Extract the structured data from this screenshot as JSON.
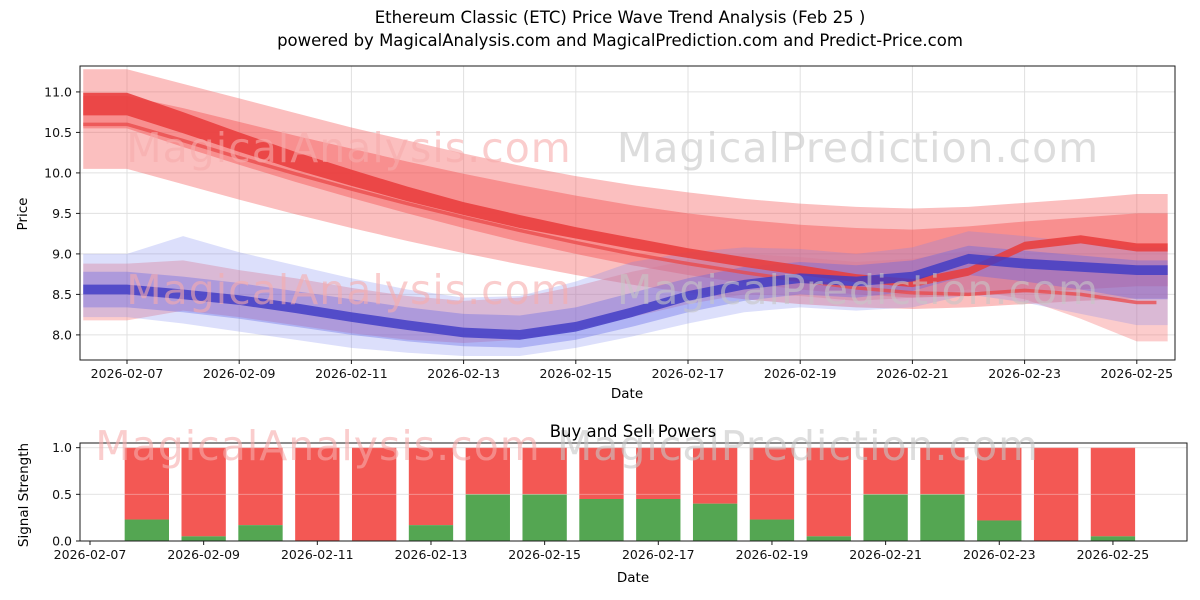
{
  "title": "Ethereum Classic (ETC) Price Wave Trend Analysis (Feb 25 )",
  "subtitle": "powered by MagicalAnalysis.com and MagicalPrediction.com and Predict-Price.com",
  "watermarks": {
    "left_text": "MagicalAnalysis.com",
    "right_text": "MagicalPrediction.com",
    "left_color": "rgba(246,172,172,0.60)",
    "right_color": "rgba(198,198,198,0.60)"
  },
  "colors": {
    "sell_band": "rgba(246,94,94,0.40)",
    "sell_band_inner": "rgba(244,84,84,0.45)",
    "sell_band_low": "rgba(247,120,120,0.38)",
    "sell_line": "rgba(232,62,62,0.88)",
    "buy_band": "rgba(116,126,240,0.25)",
    "buy_band_inner": "rgba(92,96,232,0.35)",
    "buy_line": "rgba(64,58,196,0.82)",
    "bar_sell_red": "#f24a45",
    "bar_buy_green": "#4ba149",
    "grid": "#e0e0e0",
    "spine": "#1a1a1a"
  },
  "chart_data": [
    {
      "type": "area",
      "name": "price-wave-chart",
      "xlabel": "Date",
      "ylabel": "Price",
      "x": [
        "2026-02-07",
        "2026-02-08",
        "2026-02-09",
        "2026-02-10",
        "2026-02-11",
        "2026-02-12",
        "2026-02-13",
        "2026-02-14",
        "2026-02-15",
        "2026-02-16",
        "2026-02-17",
        "2026-02-18",
        "2026-02-19",
        "2026-02-20",
        "2026-02-21",
        "2026-02-22",
        "2026-02-23",
        "2026-02-24",
        "2026-02-25"
      ],
      "xtick_labels": [
        "2026-02-07",
        "2026-02-09",
        "2026-02-11",
        "2026-02-13",
        "2026-02-15",
        "2026-02-17",
        "2026-02-19",
        "2026-02-21",
        "2026-02-23",
        "2026-02-25"
      ],
      "ytick_labels": [
        "8.0",
        "8.5",
        "9.0",
        "9.5",
        "10.0",
        "10.5",
        "11.0"
      ],
      "yticks": [
        8.0,
        8.5,
        9.0,
        9.5,
        10.0,
        10.5,
        11.0
      ],
      "ylim": [
        7.69,
        11.32
      ],
      "grid": true,
      "legend": "none",
      "series": [
        {
          "name": "sell-wave-outer-band",
          "kind": "band",
          "color": "rgba(246,94,94,0.40)",
          "upper": [
            11.28,
            11.1,
            10.92,
            10.74,
            10.56,
            10.4,
            10.24,
            10.09,
            9.96,
            9.85,
            9.76,
            9.68,
            9.62,
            9.58,
            9.56,
            9.58,
            9.63,
            9.68,
            9.74
          ],
          "lower": [
            10.05,
            9.86,
            9.67,
            9.49,
            9.32,
            9.16,
            9.01,
            8.87,
            8.74,
            8.62,
            8.52,
            8.44,
            8.38,
            8.34,
            8.32,
            8.34,
            8.38,
            8.42,
            8.45
          ]
        },
        {
          "name": "sell-wave-inner-band",
          "kind": "band",
          "color": "rgba(244,84,84,0.45)",
          "upper": [
            10.95,
            10.8,
            10.63,
            10.46,
            10.3,
            10.14,
            9.99,
            9.85,
            9.72,
            9.6,
            9.5,
            9.42,
            9.36,
            9.32,
            9.3,
            9.34,
            9.4,
            9.45,
            9.5
          ],
          "lower": [
            10.55,
            10.32,
            10.1,
            9.89,
            9.69,
            9.5,
            9.32,
            9.15,
            9.0,
            8.86,
            8.74,
            8.64,
            8.56,
            8.5,
            8.46,
            8.48,
            8.52,
            8.56,
            8.6
          ]
        },
        {
          "name": "sell-wave-low-band",
          "kind": "band",
          "color": "rgba(247,120,120,0.38)",
          "upper": [
            8.88,
            8.92,
            8.8,
            8.7,
            8.58,
            8.48,
            8.42,
            8.46,
            8.6,
            8.78,
            8.92,
            9.0,
            8.96,
            8.9,
            8.94,
            9.04,
            8.96,
            8.86,
            8.76
          ],
          "lower": [
            8.18,
            8.3,
            8.22,
            8.12,
            8.02,
            7.94,
            7.9,
            7.94,
            8.06,
            8.22,
            8.38,
            8.5,
            8.48,
            8.42,
            8.46,
            8.56,
            8.44,
            8.2,
            7.92
          ]
        },
        {
          "name": "buy-wave-outer-band",
          "kind": "band",
          "color": "rgba(116,126,240,0.25)",
          "upper": [
            9.0,
            9.22,
            9.02,
            8.86,
            8.7,
            8.56,
            8.46,
            8.48,
            8.66,
            8.9,
            9.02,
            9.08,
            9.06,
            9.0,
            9.08,
            9.28,
            9.22,
            9.14,
            9.08
          ],
          "lower": [
            8.22,
            8.14,
            8.04,
            7.94,
            7.84,
            7.78,
            7.74,
            7.74,
            7.84,
            7.98,
            8.14,
            8.28,
            8.34,
            8.3,
            8.34,
            8.5,
            8.4,
            8.26,
            8.12
          ]
        },
        {
          "name": "buy-wave-inner-band",
          "kind": "band",
          "color": "rgba(92,96,232,0.35)",
          "upper": [
            8.78,
            8.72,
            8.64,
            8.54,
            8.44,
            8.34,
            8.26,
            8.24,
            8.34,
            8.52,
            8.7,
            8.84,
            8.9,
            8.86,
            8.92,
            9.1,
            9.04,
            8.98,
            8.92
          ],
          "lower": [
            8.34,
            8.28,
            8.2,
            8.1,
            8.0,
            7.92,
            7.86,
            7.84,
            7.94,
            8.1,
            8.28,
            8.42,
            8.5,
            8.46,
            8.54,
            8.74,
            8.66,
            8.56,
            8.44
          ]
        },
        {
          "name": "sell-secondary-trend-line",
          "kind": "line",
          "color": "rgba(234,72,72,0.75)",
          "width": 3.5,
          "values": [
            10.6,
            10.4,
            10.19,
            9.99,
            9.8,
            9.62,
            9.45,
            9.29,
            9.14,
            9.0,
            8.88,
            8.77,
            8.67,
            8.58,
            8.52,
            8.5,
            8.55,
            8.5,
            8.4
          ]
        },
        {
          "name": "sell-trend-line",
          "kind": "band",
          "color": "rgba(232,62,62,0.88)",
          "upper": [
            10.99,
            10.75,
            10.5,
            10.26,
            10.04,
            9.83,
            9.64,
            9.48,
            9.33,
            9.2,
            9.07,
            8.96,
            8.86,
            8.75,
            8.69,
            8.83,
            9.15,
            9.23,
            9.13
          ],
          "lower": [
            10.71,
            10.49,
            10.26,
            10.04,
            9.84,
            9.65,
            9.48,
            9.32,
            9.19,
            9.06,
            8.95,
            8.84,
            8.74,
            8.65,
            8.59,
            8.73,
            9.05,
            9.13,
            9.03
          ]
        },
        {
          "name": "buy-trend-line",
          "kind": "band",
          "color": "rgba(64,58,196,0.82)",
          "upper": [
            8.62,
            8.56,
            8.49,
            8.39,
            8.28,
            8.18,
            8.09,
            8.06,
            8.16,
            8.34,
            8.54,
            8.68,
            8.76,
            8.72,
            8.78,
            9.0,
            8.94,
            8.9,
            8.86
          ],
          "lower": [
            8.5,
            8.44,
            8.37,
            8.27,
            8.16,
            8.06,
            7.97,
            7.94,
            8.04,
            8.22,
            8.42,
            8.56,
            8.64,
            8.6,
            8.66,
            8.88,
            8.82,
            8.78,
            8.74
          ]
        }
      ]
    },
    {
      "type": "bar",
      "name": "buy-sell-power-chart",
      "title": "Buy and Sell Powers",
      "xlabel": "Date",
      "ylabel": "Signal Strength",
      "stacked": true,
      "bar_total": 1.0,
      "categories": [
        "2026-02-08",
        "2026-02-09",
        "2026-02-10",
        "2026-02-11",
        "2026-02-12",
        "2026-02-13",
        "2026-02-14",
        "2026-02-15",
        "2026-02-16",
        "2026-02-17",
        "2026-02-18",
        "2026-02-19",
        "2026-02-20",
        "2026-02-21",
        "2026-02-22",
        "2026-02-23",
        "2026-02-24",
        "2026-02-25"
      ],
      "xtick_labels": [
        "2026-02-07",
        "2026-02-09",
        "2026-02-11",
        "2026-02-13",
        "2026-02-15",
        "2026-02-17",
        "2026-02-19",
        "2026-02-21",
        "2026-02-23",
        "2026-02-25"
      ],
      "ytick_labels": [
        "0.0",
        "0.5",
        "1.0"
      ],
      "yticks": [
        0.0,
        0.5,
        1.0
      ],
      "ylim": [
        0,
        1.05
      ],
      "grid": true,
      "series": [
        {
          "name": "Buy Power",
          "color": "#4ba149",
          "values": [
            0.23,
            0.05,
            0.17,
            0.0,
            0.0,
            0.17,
            0.5,
            0.5,
            0.45,
            0.45,
            0.4,
            0.23,
            0.05,
            0.5,
            0.5,
            0.22,
            0.0,
            0.05
          ]
        },
        {
          "name": "Sell Power",
          "color": "#f24a45",
          "values": [
            0.77,
            0.95,
            0.83,
            1.0,
            1.0,
            0.83,
            0.5,
            0.5,
            0.55,
            0.55,
            0.6,
            0.77,
            0.95,
            0.5,
            0.5,
            0.78,
            1.0,
            0.95
          ]
        }
      ]
    }
  ]
}
